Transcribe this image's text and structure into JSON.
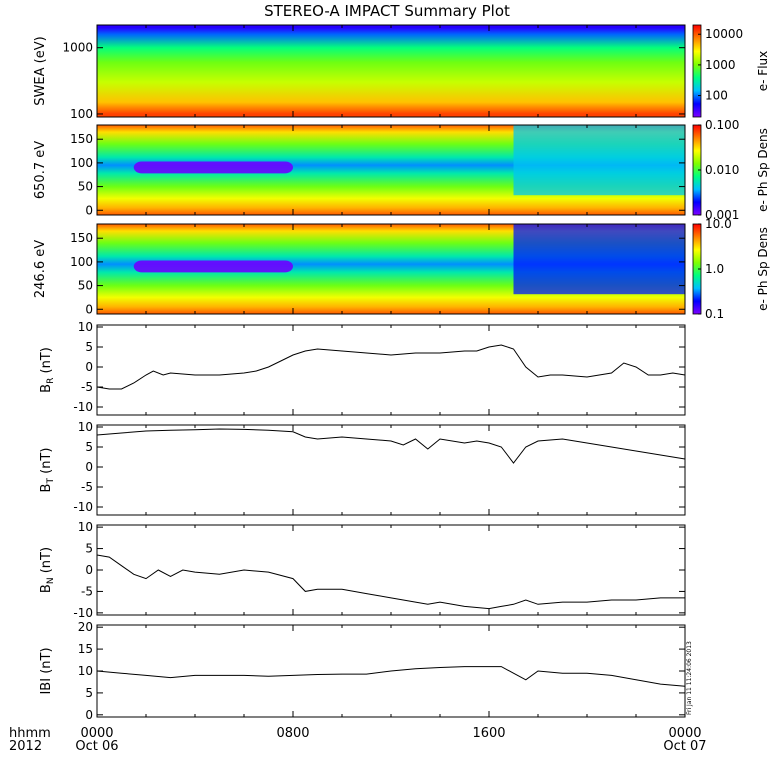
{
  "title": "STEREO-A IMPACT Summary Plot",
  "footer": {
    "row_label": "hhmm",
    "year_label": "2012",
    "stamp": "Fri Jan 11 11:24:06 2013"
  },
  "time_axis": {
    "range_hours": [
      0,
      24
    ],
    "ticks": [
      {
        "hours": 0,
        "label": "0000",
        "sublabel": "Oct 06"
      },
      {
        "hours": 8,
        "label": "0800",
        "sublabel": ""
      },
      {
        "hours": 16,
        "label": "1600",
        "sublabel": ""
      },
      {
        "hours": 24,
        "label": "0000",
        "sublabel": "Oct 07"
      }
    ]
  },
  "colors": {
    "spectrogram_scale": [
      "#7f00ff",
      "#0000ff",
      "#00bfff",
      "#00ff80",
      "#80ff00",
      "#ffff00",
      "#ff8000",
      "#ff0000"
    ],
    "line": "#000000"
  },
  "chart_data": [
    {
      "type": "heatmap",
      "panel": "swea",
      "ylabel": "SWEA (eV)",
      "yscale": "log",
      "ylim": [
        90,
        2200
      ],
      "yticks": [
        {
          "value": 100,
          "label": "100"
        },
        {
          "value": 1000,
          "label": "1000"
        }
      ],
      "colorbar": {
        "label": "e- Flux",
        "scale": "log",
        "range": [
          20,
          20000
        ],
        "ticks": [
          {
            "value": 100,
            "label": "100"
          },
          {
            "value": 1000,
            "label": "1000"
          },
          {
            "value": 10000,
            "label": "10000"
          }
        ]
      },
      "levels": [
        {
          "energy": 2000,
          "value": 40
        },
        {
          "energy": 1600,
          "value": 90
        },
        {
          "energy": 1000,
          "value": 400
        },
        {
          "energy": 600,
          "value": 900
        },
        {
          "energy": 300,
          "value": 1800
        },
        {
          "energy": 150,
          "value": 4500
        },
        {
          "energy": 100,
          "value": 12000
        }
      ]
    },
    {
      "type": "heatmap",
      "panel": "pad650",
      "ylabel": "650.7 eV",
      "ylim": [
        -10,
        180
      ],
      "yticks": [
        {
          "value": 0,
          "label": "0"
        },
        {
          "value": 50,
          "label": "50"
        },
        {
          "value": 100,
          "label": "100"
        },
        {
          "value": 150,
          "label": "150"
        }
      ],
      "colorbar": {
        "label": "e- Ph Sp Dens",
        "scale": "log",
        "range": [
          0.001,
          0.1
        ],
        "ticks": [
          {
            "value": 0.001,
            "label": "0.001"
          },
          {
            "value": 0.01,
            "label": "0.010"
          },
          {
            "value": 0.1,
            "label": "0.100"
          }
        ]
      },
      "depletion_hours": [
        1.5,
        8.0
      ],
      "quiet_hours": [
        17.0,
        24.0
      ]
    },
    {
      "type": "heatmap",
      "panel": "pad246",
      "ylabel": "246.6 eV",
      "ylim": [
        -10,
        180
      ],
      "yticks": [
        {
          "value": 0,
          "label": "0"
        },
        {
          "value": 50,
          "label": "50"
        },
        {
          "value": 100,
          "label": "100"
        },
        {
          "value": 150,
          "label": "150"
        }
      ],
      "colorbar": {
        "label": "e- Ph Sp Dens",
        "scale": "log",
        "range": [
          0.1,
          10.0
        ],
        "ticks": [
          {
            "value": 0.1,
            "label": "0.1"
          },
          {
            "value": 1.0,
            "label": "1.0"
          },
          {
            "value": 10.0,
            "label": "10.0"
          }
        ]
      },
      "depletion_hours": [
        1.5,
        8.0
      ],
      "quiet_hours": [
        17.0,
        24.0
      ]
    },
    {
      "type": "line",
      "panel": "br",
      "ylabel_main": "B",
      "ylabel_sub": "R",
      "ylabel_unit": " (nT)",
      "ylim": [
        -12,
        10.5
      ],
      "yticks": [
        {
          "value": -10,
          "label": "-10"
        },
        {
          "value": -5,
          "label": "-5"
        },
        {
          "value": 0,
          "label": "0"
        },
        {
          "value": 5,
          "label": "5"
        },
        {
          "value": 10,
          "label": "10"
        }
      ],
      "points": [
        [
          0,
          -5
        ],
        [
          0.5,
          -5.5
        ],
        [
          1,
          -5.5
        ],
        [
          1.5,
          -4
        ],
        [
          2,
          -2
        ],
        [
          2.3,
          -1
        ],
        [
          2.7,
          -2
        ],
        [
          3,
          -1.5
        ],
        [
          4,
          -2
        ],
        [
          5,
          -2
        ],
        [
          6,
          -1.5
        ],
        [
          6.5,
          -1
        ],
        [
          7,
          0
        ],
        [
          7.5,
          1.5
        ],
        [
          8,
          3
        ],
        [
          8.5,
          4
        ],
        [
          9,
          4.5
        ],
        [
          10,
          4
        ],
        [
          11,
          3.5
        ],
        [
          12,
          3
        ],
        [
          13,
          3.5
        ],
        [
          14,
          3.5
        ],
        [
          15,
          4
        ],
        [
          15.5,
          4
        ],
        [
          16,
          5
        ],
        [
          16.5,
          5.5
        ],
        [
          17,
          4.5
        ],
        [
          17.5,
          0
        ],
        [
          18,
          -2.5
        ],
        [
          18.5,
          -2
        ],
        [
          19,
          -2
        ],
        [
          20,
          -2.5
        ],
        [
          21,
          -1.5
        ],
        [
          21.5,
          1
        ],
        [
          22,
          0
        ],
        [
          22.5,
          -2
        ],
        [
          23,
          -2
        ],
        [
          23.5,
          -1.5
        ],
        [
          24,
          -2
        ]
      ]
    },
    {
      "type": "line",
      "panel": "bt",
      "ylabel_main": "B",
      "ylabel_sub": "T",
      "ylabel_unit": " (nT)",
      "ylim": [
        -12,
        10.5
      ],
      "yticks": [
        {
          "value": -10,
          "label": "-10"
        },
        {
          "value": -5,
          "label": "-5"
        },
        {
          "value": 0,
          "label": "0"
        },
        {
          "value": 5,
          "label": "5"
        },
        {
          "value": 10,
          "label": "10"
        }
      ],
      "points": [
        [
          0,
          8
        ],
        [
          1,
          8.5
        ],
        [
          2,
          9
        ],
        [
          3,
          9.2
        ],
        [
          4,
          9.3
        ],
        [
          5,
          9.5
        ],
        [
          6,
          9.4
        ],
        [
          7,
          9.2
        ],
        [
          8,
          8.8
        ],
        [
          8.5,
          7.5
        ],
        [
          9,
          7
        ],
        [
          10,
          7.5
        ],
        [
          11,
          7
        ],
        [
          12,
          6.5
        ],
        [
          12.5,
          5.5
        ],
        [
          13,
          7
        ],
        [
          13.5,
          4.5
        ],
        [
          14,
          7
        ],
        [
          15,
          6
        ],
        [
          15.5,
          6.5
        ],
        [
          16,
          6
        ],
        [
          16.5,
          5
        ],
        [
          17,
          1
        ],
        [
          17.5,
          5
        ],
        [
          18,
          6.5
        ],
        [
          19,
          7
        ],
        [
          20,
          6
        ],
        [
          21,
          5
        ],
        [
          22,
          4
        ],
        [
          23,
          3
        ],
        [
          24,
          2
        ]
      ]
    },
    {
      "type": "line",
      "panel": "bn",
      "ylabel_main": "B",
      "ylabel_sub": "N",
      "ylabel_unit": " (nT)",
      "ylim": [
        -10.5,
        10.5
      ],
      "yticks": [
        {
          "value": -10,
          "label": "-10"
        },
        {
          "value": -5,
          "label": "-5"
        },
        {
          "value": 0,
          "label": "0"
        },
        {
          "value": 5,
          "label": "5"
        },
        {
          "value": 10,
          "label": "10"
        }
      ],
      "points": [
        [
          0,
          3.5
        ],
        [
          0.5,
          3
        ],
        [
          1,
          1
        ],
        [
          1.5,
          -1
        ],
        [
          2,
          -2
        ],
        [
          2.5,
          0
        ],
        [
          3,
          -1.5
        ],
        [
          3.5,
          0
        ],
        [
          4,
          -0.5
        ],
        [
          5,
          -1
        ],
        [
          6,
          0
        ],
        [
          7,
          -0.5
        ],
        [
          8,
          -2
        ],
        [
          8.5,
          -5
        ],
        [
          9,
          -4.5
        ],
        [
          10,
          -4.5
        ],
        [
          11,
          -5.5
        ],
        [
          11.5,
          -6
        ],
        [
          12,
          -6.5
        ],
        [
          12.5,
          -7
        ],
        [
          13,
          -7.5
        ],
        [
          13.5,
          -8
        ],
        [
          14,
          -7.5
        ],
        [
          15,
          -8.5
        ],
        [
          16,
          -9
        ],
        [
          16.5,
          -8.5
        ],
        [
          17,
          -8
        ],
        [
          17.5,
          -7
        ],
        [
          18,
          -8
        ],
        [
          19,
          -7.5
        ],
        [
          20,
          -7.5
        ],
        [
          21,
          -7
        ],
        [
          22,
          -7
        ],
        [
          23,
          -6.5
        ],
        [
          24,
          -6.5
        ]
      ]
    },
    {
      "type": "line",
      "panel": "bmag",
      "ylabel_main": "IBI",
      "ylabel_sub": "",
      "ylabel_unit": " (nT)",
      "ylim": [
        -0.5,
        20.5
      ],
      "yticks": [
        {
          "value": 0,
          "label": "0"
        },
        {
          "value": 5,
          "label": "5"
        },
        {
          "value": 10,
          "label": "10"
        },
        {
          "value": 15,
          "label": "15"
        },
        {
          "value": 20,
          "label": "20"
        }
      ],
      "points": [
        [
          0,
          10
        ],
        [
          1,
          9.5
        ],
        [
          2,
          9
        ],
        [
          3,
          8.5
        ],
        [
          4,
          9
        ],
        [
          5,
          9
        ],
        [
          6,
          9
        ],
        [
          7,
          8.8
        ],
        [
          8,
          9
        ],
        [
          9,
          9.2
        ],
        [
          10,
          9.3
        ],
        [
          11,
          9.3
        ],
        [
          12,
          10
        ],
        [
          13,
          10.5
        ],
        [
          14,
          10.8
        ],
        [
          15,
          11
        ],
        [
          16,
          11
        ],
        [
          16.5,
          11
        ],
        [
          17,
          9.5
        ],
        [
          17.5,
          8
        ],
        [
          18,
          10
        ],
        [
          19,
          9.5
        ],
        [
          20,
          9.5
        ],
        [
          21,
          9
        ],
        [
          22,
          8
        ],
        [
          23,
          7
        ],
        [
          24,
          6.5
        ]
      ]
    }
  ]
}
